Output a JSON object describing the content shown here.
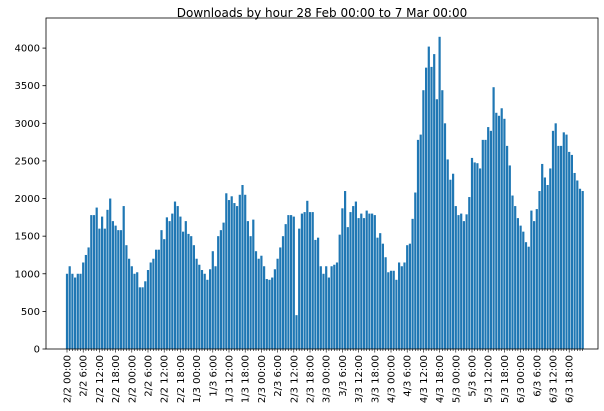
{
  "chart_data": {
    "type": "bar",
    "title": "Downloads by hour 28 Feb 00:00 to 7 Mar 00:00",
    "color": "#1f77b4",
    "categories": [
      "2/2 00:00",
      null,
      null,
      null,
      null,
      null,
      "2/2 6:00",
      null,
      null,
      null,
      null,
      null,
      "2/2 12:00",
      null,
      null,
      null,
      null,
      null,
      "2/2 18:00",
      null,
      null,
      null,
      null,
      null,
      "2/2 00:00",
      null,
      null,
      null,
      null,
      null,
      "2/2 6:00",
      null,
      null,
      null,
      null,
      null,
      "2/2 12:00",
      null,
      null,
      null,
      null,
      null,
      "2/2 18:00",
      null,
      null,
      null,
      null,
      null,
      "1/3 00:00",
      null,
      null,
      null,
      null,
      null,
      "1/3 6:00",
      null,
      null,
      null,
      null,
      null,
      "1/3 12:00",
      null,
      null,
      null,
      null,
      null,
      "1/3 18:00",
      null,
      null,
      null,
      null,
      null,
      "2/3 00:00",
      null,
      null,
      null,
      null,
      null,
      "2/3 6:00",
      null,
      null,
      null,
      null,
      null,
      "2/3 12:00",
      null,
      null,
      null,
      null,
      null,
      "2/3 18:00",
      null,
      null,
      null,
      null,
      null,
      "3/3 00:00",
      null,
      null,
      null,
      null,
      null,
      "3/3 6:00",
      null,
      null,
      null,
      null,
      null,
      "3/3 12:00",
      null,
      null,
      null,
      null,
      null,
      "3/3 18:00",
      null,
      null,
      null,
      null,
      null,
      "4/3 00:00",
      null,
      null,
      null,
      null,
      null,
      "4/3 6:00",
      null,
      null,
      null,
      null,
      null,
      "4/3 12:00",
      null,
      null,
      null,
      null,
      null,
      "4/3 18:00",
      null,
      null,
      null,
      null,
      null,
      "5/3 00:00",
      null,
      null,
      null,
      null,
      null,
      "5/3 6:00",
      null,
      null,
      null,
      null,
      null,
      "5/3 12:00",
      null,
      null,
      null,
      null,
      null,
      "5/3 18:00",
      null,
      null,
      null,
      null,
      null,
      "6/3 00:00",
      null,
      null,
      null,
      null,
      null,
      "6/3 6:00",
      null,
      null,
      null,
      null,
      null,
      "6/3 12:00",
      null,
      null,
      null,
      null,
      null,
      "6/3 18:00",
      null,
      null,
      null,
      null,
      null
    ],
    "values": [
      1000,
      1100,
      1000,
      950,
      1000,
      1000,
      1150,
      1250,
      1350,
      1780,
      1780,
      1880,
      1600,
      1760,
      1600,
      1850,
      2000,
      1700,
      1640,
      1580,
      1580,
      1900,
      1380,
      1200,
      1100,
      1000,
      1020,
      820,
      820,
      900,
      1050,
      1150,
      1200,
      1320,
      1320,
      1580,
      1460,
      1750,
      1700,
      1800,
      1960,
      1900,
      1760,
      1560,
      1700,
      1530,
      1500,
      1380,
      1200,
      1120,
      1050,
      1000,
      920,
      1060,
      1300,
      1100,
      1500,
      1580,
      1680,
      2070,
      1980,
      2030,
      1940,
      1900,
      2050,
      2180,
      2050,
      1700,
      1500,
      1720,
      1300,
      1200,
      1240,
      1100,
      930,
      920,
      950,
      1060,
      1200,
      1350,
      1500,
      1660,
      1780,
      1780,
      1760,
      450,
      1600,
      1800,
      1820,
      1970,
      1820,
      1820,
      1450,
      1480,
      1100,
      1000,
      1100,
      950,
      1100,
      1120,
      1150,
      1520,
      1870,
      2100,
      1620,
      1820,
      1900,
      1960,
      1740,
      1800,
      1740,
      1840,
      1800,
      1800,
      1780,
      1480,
      1540,
      1400,
      1220,
      1020,
      1040,
      1040,
      920,
      1150,
      1100,
      1150,
      1380,
      1400,
      1730,
      2080,
      2780,
      2850,
      3440,
      3740,
      4020,
      3750,
      3920,
      3320,
      4150,
      3440,
      3000,
      2520,
      2250,
      2330,
      1900,
      1780,
      1800,
      1700,
      1790,
      2020,
      2540,
      2480,
      2470,
      2400,
      2780,
      2780,
      2950,
      2900,
      3480,
      3140,
      3100,
      3200,
      3060,
      2700,
      2440,
      2040,
      1900,
      1740,
      1640,
      1560,
      1420,
      1360,
      1840,
      1700,
      1860,
      2100,
      2460,
      2280,
      2180,
      2400,
      2900,
      3000,
      2700,
      2700,
      2880,
      2850,
      2620,
      2580,
      2340,
      2240,
      2130,
      2100
    ],
    "ylim": [
      0,
      4400
    ],
    "yticks": [
      0,
      500,
      1000,
      1500,
      2000,
      2500,
      3000,
      3500,
      4000
    ],
    "grid": false
  }
}
